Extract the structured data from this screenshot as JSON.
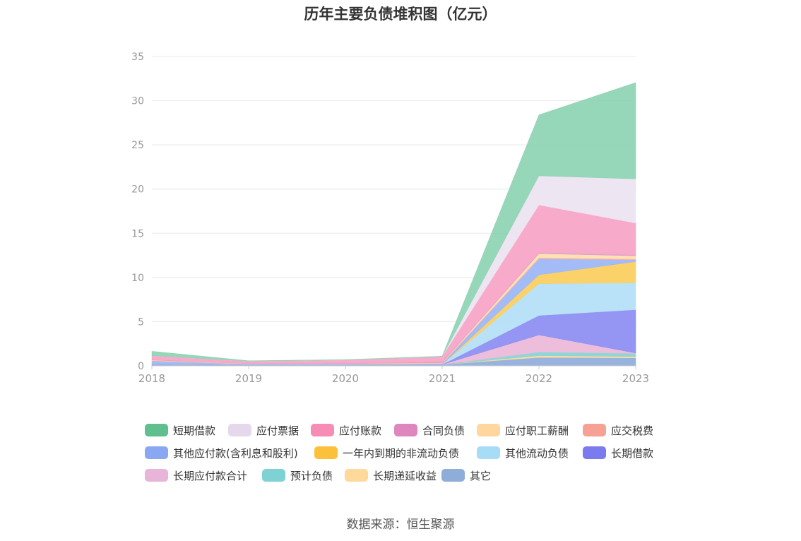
{
  "chart_data": {
    "type": "area",
    "stacked": true,
    "title": "历年主要负债堆积图（亿元）",
    "x": [
      "2018",
      "2019",
      "2020",
      "2021",
      "2022",
      "2023"
    ],
    "ylim": [
      0,
      35
    ],
    "yticks": [
      0,
      5,
      10,
      15,
      20,
      25,
      30,
      35
    ],
    "grid": true,
    "legend_position": "bottom",
    "series": [
      {
        "name": "其它",
        "color": "#8eaddb",
        "values": [
          0.2,
          0.1,
          0.1,
          0.15,
          0.95,
          0.9
        ]
      },
      {
        "name": "长期递延收益",
        "color": "#ffd79a",
        "values": [
          0,
          0,
          0,
          0,
          0.2,
          0.15
        ]
      },
      {
        "name": "预计负债",
        "color": "#84d4d6",
        "values": [
          0,
          0,
          0,
          0,
          0.4,
          0.35
        ]
      },
      {
        "name": "长期应付款合计",
        "color": "#eab8d8",
        "values": [
          0,
          0,
          0,
          0,
          1.95,
          0.05
        ]
      },
      {
        "name": "长期借款",
        "color": "#8c8cf2",
        "values": [
          0,
          0,
          0,
          0,
          2.2,
          4.9
        ]
      },
      {
        "name": "其他流动负债",
        "color": "#b3e0f7",
        "values": [
          0,
          0,
          0,
          0,
          3.6,
          3.05
        ]
      },
      {
        "name": "一年内到期的非流动负债",
        "color": "#fbcd5c",
        "values": [
          0,
          0,
          0,
          0,
          1.0,
          2.4
        ]
      },
      {
        "name": "其他应付款(含利息和股利)",
        "color": "#9bb5f6",
        "values": [
          0.35,
          0.1,
          0.1,
          0.1,
          1.8,
          0.2
        ]
      },
      {
        "name": "应交税费",
        "color": "#f9b2a5",
        "values": [
          0.05,
          0.02,
          0.03,
          0.05,
          0.15,
          0.1
        ]
      },
      {
        "name": "应付职工薪酬",
        "color": "#fde0ad",
        "values": [
          0.05,
          0.03,
          0.03,
          0.05,
          0.45,
          0.35
        ]
      },
      {
        "name": "合同负债",
        "color": "#df9bcb",
        "values": [
          0.05,
          0.03,
          0.05,
          0.1,
          0.1,
          0.1
        ]
      },
      {
        "name": "应付账款",
        "color": "#f7a3c6",
        "values": [
          0.45,
          0.25,
          0.35,
          0.6,
          5.4,
          3.6
        ]
      },
      {
        "name": "应付票据",
        "color": "#ece3f1",
        "values": [
          0,
          0,
          0,
          0,
          3.3,
          5.0
        ]
      },
      {
        "name": "短期借款",
        "color": "#8dd3b3",
        "values": [
          0.5,
          0.05,
          0.05,
          0.05,
          6.9,
          10.9
        ]
      }
    ]
  },
  "legend": [
    {
      "label": "短期借款",
      "color": "#5fbf8e"
    },
    {
      "label": "应付票据",
      "color": "#e6d8ec"
    },
    {
      "label": "应付账款",
      "color": "#f78cb6"
    },
    {
      "label": "合同负债",
      "color": "#de87bf"
    },
    {
      "label": "应付职工薪酬",
      "color": "#ffd69e"
    },
    {
      "label": "应交税费",
      "color": "#f7a195"
    },
    {
      "label": "其他应付款(含利息和股利)",
      "color": "#8aa8f2"
    },
    {
      "label": "一年内到期的非流动负债",
      "color": "#fbc13b"
    },
    {
      "label": "其他流动负债",
      "color": "#a7dcf6"
    },
    {
      "label": "长期借款",
      "color": "#7b7bef"
    },
    {
      "label": "长期应付款合计",
      "color": "#e8b4d7"
    },
    {
      "label": "预计负债",
      "color": "#7ed2d4"
    },
    {
      "label": "长期递延收益",
      "color": "#ffd89c"
    },
    {
      "label": "其它",
      "color": "#8eadd9"
    }
  ],
  "source": "数据来源：恒生聚源"
}
